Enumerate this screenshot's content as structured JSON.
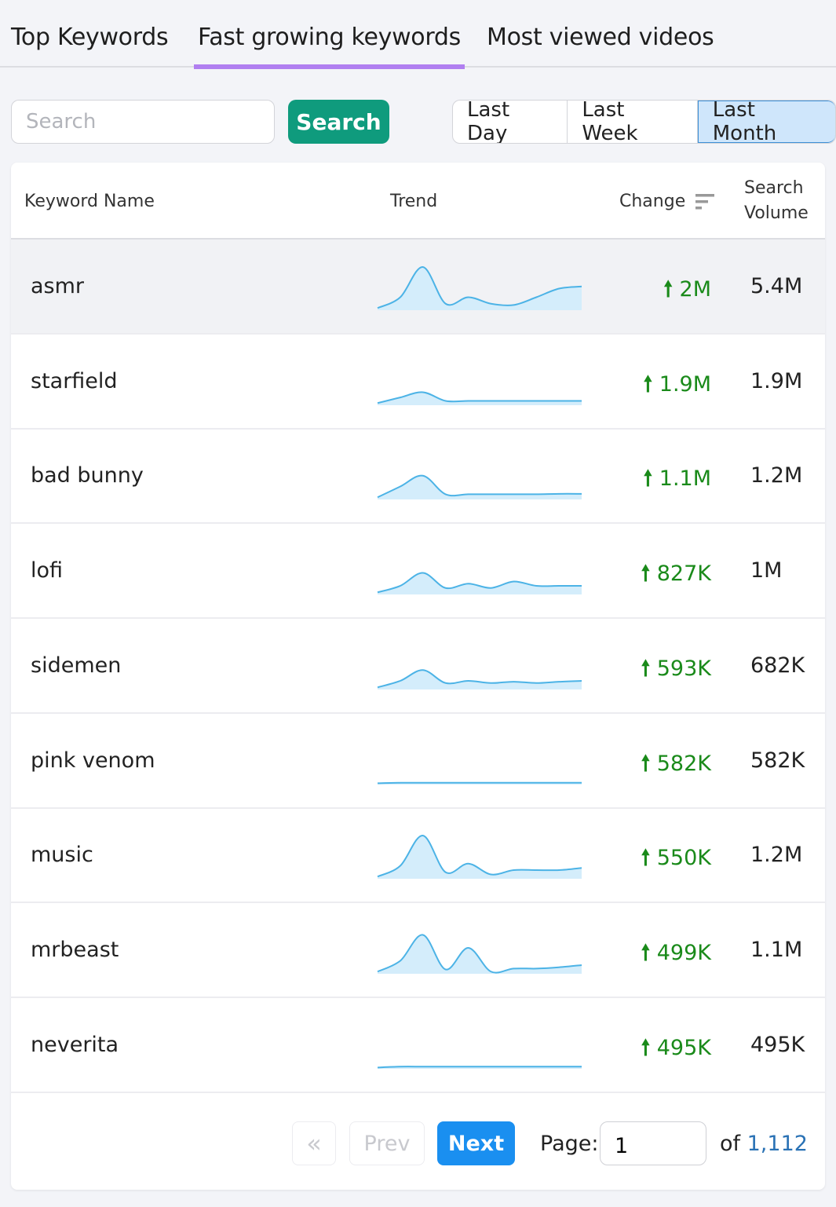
{
  "tabs": [
    {
      "label": "Top Keywords"
    },
    {
      "label": "Fast growing keywords",
      "active": true
    },
    {
      "label": "Most viewed videos"
    }
  ],
  "search": {
    "placeholder": "Search",
    "value": "",
    "button_label": "Search"
  },
  "periods": [
    {
      "label": "Last Day"
    },
    {
      "label": "Last Week"
    },
    {
      "label": "Last Month",
      "selected": true
    }
  ],
  "table": {
    "headers": {
      "keyword": "Keyword Name",
      "trend": "Trend",
      "change": "Change",
      "volume_line1": "Search",
      "volume_line2": "Volume"
    },
    "rows": [
      {
        "keyword": "asmr",
        "change": "2M",
        "volume": "5.4M",
        "trend": [
          0.05,
          0.3,
          1.0,
          0.15,
          0.3,
          0.15,
          0.12,
          0.3,
          0.5,
          0.55
        ]
      },
      {
        "keyword": "starfield",
        "change": "1.9M",
        "volume": "1.9M",
        "trend": [
          0.05,
          0.18,
          0.3,
          0.1,
          0.1,
          0.1,
          0.1,
          0.1,
          0.1,
          0.1
        ]
      },
      {
        "keyword": "bad bunny",
        "change": "1.1M",
        "volume": "1.2M",
        "trend": [
          0.05,
          0.3,
          0.55,
          0.12,
          0.12,
          0.12,
          0.12,
          0.12,
          0.13,
          0.13
        ]
      },
      {
        "keyword": "lofi",
        "change": "827K",
        "volume": "1M",
        "trend": [
          0.05,
          0.2,
          0.5,
          0.15,
          0.25,
          0.15,
          0.3,
          0.2,
          0.2,
          0.2
        ]
      },
      {
        "keyword": "sidemen",
        "change": "593K",
        "volume": "682K",
        "trend": [
          0.05,
          0.2,
          0.45,
          0.15,
          0.2,
          0.15,
          0.18,
          0.15,
          0.18,
          0.2
        ]
      },
      {
        "keyword": "pink venom",
        "change": "582K",
        "volume": "582K",
        "trend": [
          0.03,
          0.04,
          0.04,
          0.04,
          0.04,
          0.04,
          0.04,
          0.04,
          0.04,
          0.04
        ]
      },
      {
        "keyword": "music",
        "change": "550K",
        "volume": "1.2M",
        "trend": [
          0.05,
          0.3,
          1.0,
          0.15,
          0.35,
          0.1,
          0.2,
          0.2,
          0.2,
          0.25
        ]
      },
      {
        "keyword": "mrbeast",
        "change": "499K",
        "volume": "1.1M",
        "trend": [
          0.05,
          0.3,
          0.9,
          0.1,
          0.6,
          0.05,
          0.12,
          0.12,
          0.15,
          0.2
        ]
      },
      {
        "keyword": "neverita",
        "change": "495K",
        "volume": "495K",
        "trend": [
          0.03,
          0.05,
          0.05,
          0.05,
          0.05,
          0.05,
          0.05,
          0.05,
          0.05,
          0.05
        ]
      }
    ]
  },
  "pagination": {
    "first_icon": "double-chevron-left-icon",
    "prev_label": "Prev",
    "next_label": "Next",
    "page_label": "Page:",
    "page_value": "1",
    "of_label": "of",
    "total_pages": "1,112"
  },
  "colors": {
    "accent_tab": "#b07ff0",
    "search_button": "#0f9b7d",
    "next_button": "#1a8ff0",
    "change_up": "#1a8a1a",
    "spark_line": "#4cb3e6",
    "spark_fill": "#d4edfb"
  }
}
